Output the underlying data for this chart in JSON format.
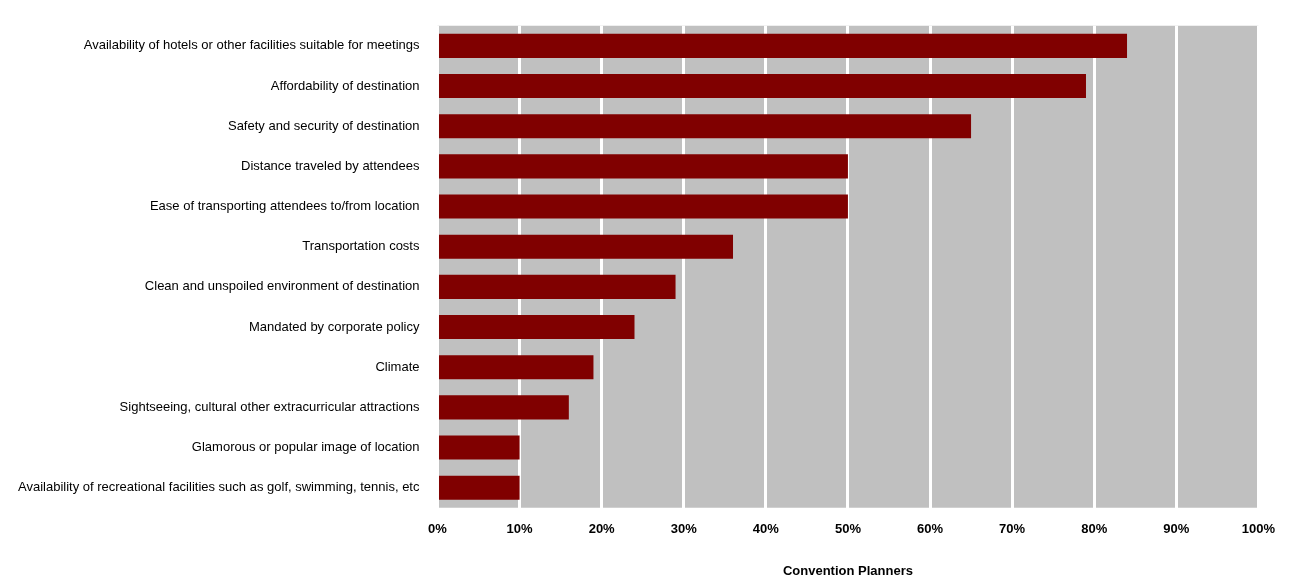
{
  "chart_data": {
    "type": "bar",
    "orientation": "horizontal",
    "xlabel": "Convention Planners",
    "categories": [
      "Availability of hotels or other facilities suitable for meetings",
      "Affordability of destination",
      "Safety and security of destination",
      "Distance traveled by attendees",
      "Ease of transporting attendees to/from location",
      "Transportation costs",
      "Clean and unspoiled environment of destination",
      "Mandated by corporate policy",
      "Climate",
      "Sightseeing, cultural other extracurricular attractions",
      "Glamorous or popular image of location",
      "Availability of recreational facilities such as golf, swimming, tennis, etc"
    ],
    "values": [
      84,
      79,
      65,
      50,
      50,
      36,
      29,
      24,
      19,
      16,
      10,
      10
    ],
    "color": "#800000",
    "xlim": [
      0,
      100
    ],
    "xticks": [
      {
        "value": 0,
        "label": "0%"
      },
      {
        "value": 10,
        "label": "10%"
      },
      {
        "value": 20,
        "label": "20%"
      },
      {
        "value": 30,
        "label": "30%"
      },
      {
        "value": 40,
        "label": "40%"
      },
      {
        "value": 50,
        "label": "50%"
      },
      {
        "value": 60,
        "label": "60%"
      },
      {
        "value": 70,
        "label": "70%"
      },
      {
        "value": 80,
        "label": "80%"
      },
      {
        "value": 90,
        "label": "90%"
      },
      {
        "value": 100,
        "label": "100%"
      }
    ],
    "grid": "x",
    "legend": false
  }
}
